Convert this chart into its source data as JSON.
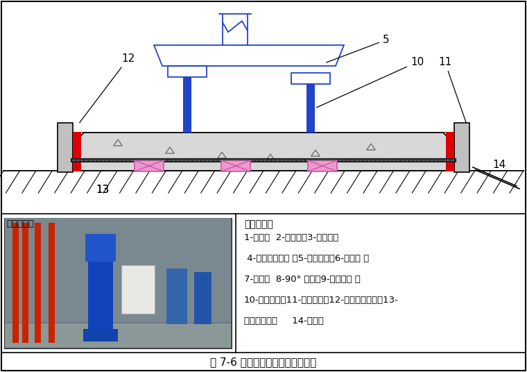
{
  "title": "图 7-6 立式水泵与管路连接示意图",
  "bg_color": "#ffffff",
  "red_color": "#dd0000",
  "blue_color": "#2244cc",
  "pink_color": "#ee99cc",
  "pink_edge": "#cc55aa",
  "symbol_text": "符号说明：",
  "symbol_lines": [
    "1-闸阀；  2-除污器；3-软接头；",
    " 4-压力表连旋塞 ；5-立式水泵；6-止回阀 ；",
    "7-支架；  8-90° 弯头；9-弹性吊架 ；",
    "10-浮动底座；11-隔离夹板；12-外部等级夹板；13-",
    "隔振橡胶垫；     14-地面；"
  ],
  "case_label": "实施案例："
}
